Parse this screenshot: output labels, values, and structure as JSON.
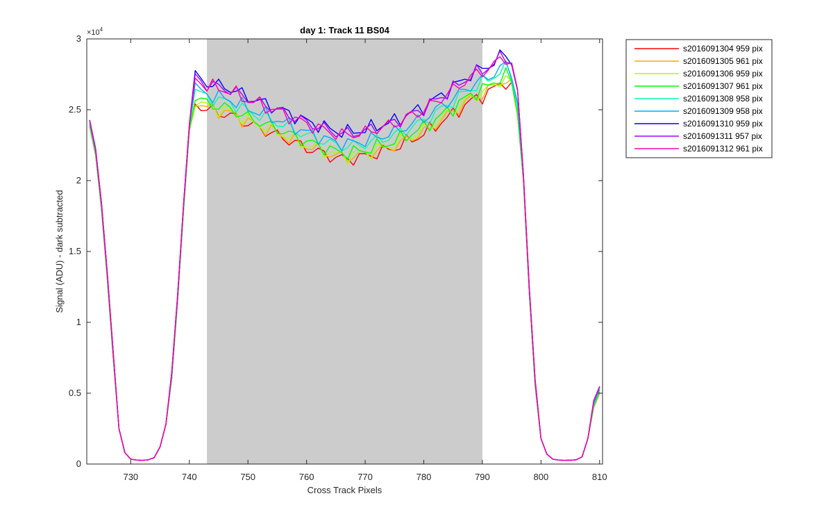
{
  "chart_data": {
    "type": "line",
    "title": "day 1: Track 11  BS04",
    "xlabel": "Cross Track Pixels",
    "ylabel": "Signal (ADU) - dark subtracted",
    "y_exponent_label": "×10",
    "y_exponent_power": "4",
    "xlim": [
      722.5,
      810.5
    ],
    "ylim": [
      0,
      30000
    ],
    "xticks": [
      730,
      740,
      750,
      760,
      770,
      780,
      790,
      800,
      810
    ],
    "yticks": [
      0,
      5000,
      10000,
      15000,
      20000,
      25000,
      30000
    ],
    "ytick_labels": [
      "0",
      "0.5",
      "1",
      "1.5",
      "2",
      "2.5",
      "3"
    ],
    "shaded_region": {
      "x_start": 743,
      "x_end": 790,
      "color": "#cccccc"
    },
    "grid": false,
    "legend_position": "outside-top-right",
    "series": [
      {
        "name": "s2016091304 959 pix",
        "color": "#ff0000",
        "offset": 0,
        "ripple_phase": 0.0
      },
      {
        "name": "s2016091305 961 pix",
        "color": "#ffaa00",
        "offset": 150,
        "ripple_phase": 0.7
      },
      {
        "name": "s2016091306 959 pix",
        "color": "#aaff00",
        "offset": 250,
        "ripple_phase": 1.4
      },
      {
        "name": "s2016091307 961 pix",
        "color": "#00ff00",
        "offset": 450,
        "ripple_phase": 2.1
      },
      {
        "name": "s2016091308 958 pix",
        "color": "#00ffaa",
        "offset": 900,
        "ripple_phase": 2.8
      },
      {
        "name": "s2016091309 958 pix",
        "color": "#00aaff",
        "offset": 1100,
        "ripple_phase": 3.5
      },
      {
        "name": "s2016091310 959 pix",
        "color": "#0000ff",
        "offset": 1900,
        "ripple_phase": 4.2
      },
      {
        "name": "s2016091311 957 pix",
        "color": "#aa00ff",
        "offset": 1800,
        "ripple_phase": 4.9
      },
      {
        "name": "s2016091312 961 pix",
        "color": "#ff00aa",
        "offset": 1700,
        "ripple_phase": 5.6
      }
    ],
    "base_profile": {
      "x": [
        723,
        724,
        725,
        726,
        727,
        728,
        729,
        730,
        731,
        732,
        733,
        734,
        735,
        736,
        737,
        738,
        739,
        740,
        741,
        742,
        743,
        745,
        747,
        750,
        755,
        760,
        765,
        767,
        770,
        775,
        780,
        785,
        788,
        790,
        791,
        792,
        793,
        794,
        795,
        796,
        797,
        798,
        799,
        800,
        801,
        802,
        803,
        804,
        805,
        806,
        807,
        808,
        809,
        810
      ],
      "y": [
        23800,
        21800,
        18000,
        13000,
        7500,
        2500,
        800,
        350,
        280,
        260,
        300,
        450,
        1200,
        2800,
        6000,
        11500,
        17800,
        23500,
        25500,
        25200,
        25000,
        24800,
        24600,
        24000,
        23200,
        22300,
        21600,
        21500,
        21700,
        22300,
        23300,
        24700,
        25600,
        26000,
        26200,
        26500,
        26800,
        27000,
        26500,
        24500,
        20000,
        12000,
        5500,
        1800,
        700,
        350,
        280,
        260,
        270,
        300,
        500,
        1800,
        4000,
        5000
      ]
    }
  }
}
